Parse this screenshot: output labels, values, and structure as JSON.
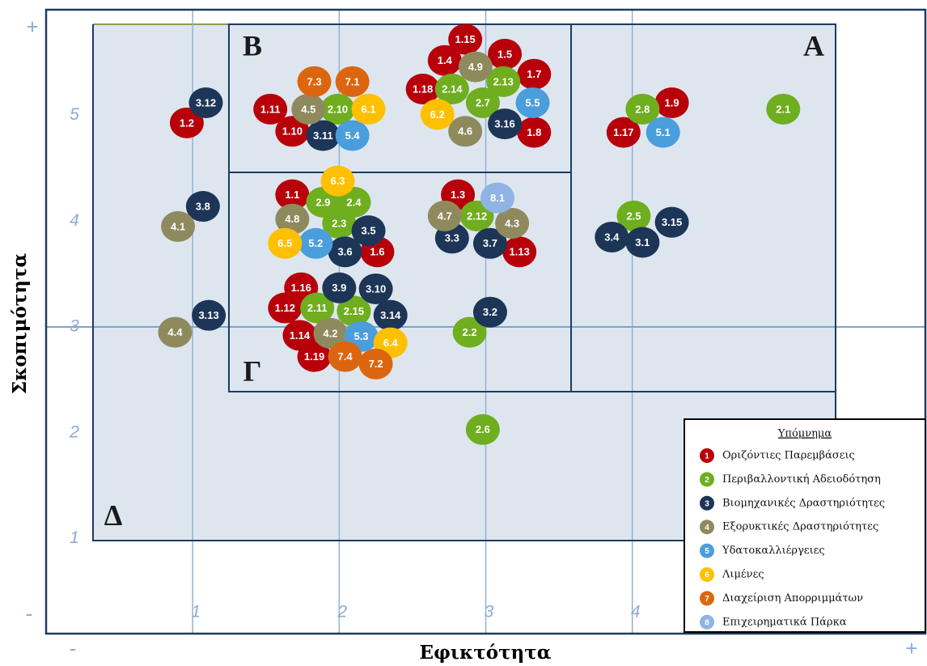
{
  "chart_data": {
    "type": "scatter",
    "x_label": "Εφικτότητα",
    "y_label": "Σκοπιμότητα",
    "axis_ends": {
      "x_minus": "-",
      "x_plus": "+",
      "y_minus": "-",
      "y_plus": "+"
    },
    "xlim": [
      0,
      6
    ],
    "ylim": [
      0.1,
      6
    ],
    "xticks": [
      1,
      2,
      3,
      4
    ],
    "yticks": [
      1,
      2,
      3,
      4,
      5
    ],
    "grid": true,
    "regions": [
      "Α",
      "Β",
      "Γ",
      "Δ"
    ],
    "legend_title": "Υπόμνημα",
    "legend": "bottom-right",
    "series": [
      {
        "id": "1",
        "name": "Οριζόντιες Παρεμβάσεις",
        "color": "#b8000b",
        "labels": [
          "1.15",
          "1.5",
          "1.4",
          "1.7",
          "1.18",
          "1.9",
          "1.11",
          "1.2",
          "1.10",
          "1.8",
          "1.17",
          "1.3",
          "1.1",
          "1.6",
          "1.13",
          "1.16",
          "1.12",
          "1.14",
          "1.19"
        ],
        "x": [
          2.86,
          3.13,
          2.72,
          3.33,
          2.57,
          4.27,
          1.53,
          0.96,
          1.68,
          3.33,
          3.94,
          2.81,
          1.68,
          2.26,
          3.23,
          1.74,
          1.63,
          1.73,
          1.83
        ],
        "values": [
          5.72,
          5.58,
          5.52,
          5.39,
          5.25,
          5.12,
          5.06,
          4.93,
          4.85,
          4.84,
          4.84,
          4.25,
          4.25,
          3.71,
          3.71,
          3.37,
          3.18,
          2.92,
          2.72
        ]
      },
      {
        "id": "2",
        "name": "Περιβαλλοντική Αδειοδότηση",
        "color": "#6fae1f",
        "labels": [
          "2.14",
          "2.13",
          "2.10",
          "2.7",
          "2.8",
          "2.1",
          "2.9",
          "2.4",
          "2.12",
          "2.3",
          "2.5",
          "2.11",
          "2.15",
          "2.2",
          "2.6"
        ],
        "x": [
          2.77,
          3.12,
          1.99,
          2.98,
          4.07,
          5.03,
          1.89,
          2.1,
          2.94,
          2.0,
          4.01,
          1.85,
          2.1,
          2.89,
          2.98
        ],
        "values": [
          5.25,
          5.32,
          5.06,
          5.12,
          5.06,
          5.06,
          4.18,
          4.18,
          4.05,
          3.98,
          4.05,
          3.18,
          3.15,
          2.95,
          2.03
        ]
      },
      {
        "id": "3",
        "name": "Βιομηχανικές Δραστηριότητες",
        "color": "#1d3557",
        "labels": [
          "3.12",
          "3.11",
          "3.16",
          "3.8",
          "3.5",
          "3.3",
          "3.7",
          "3.6",
          "3.4",
          "3.1",
          "3.15",
          "3.9",
          "3.10",
          "3.14",
          "3.13",
          "3.2"
        ],
        "x": [
          1.09,
          1.89,
          3.13,
          1.07,
          2.2,
          2.77,
          3.03,
          2.04,
          3.86,
          4.07,
          4.27,
          2.0,
          2.25,
          2.35,
          1.11,
          3.03
        ],
        "values": [
          5.12,
          4.81,
          4.92,
          4.14,
          3.91,
          3.84,
          3.79,
          3.71,
          3.85,
          3.8,
          3.99,
          3.37,
          3.36,
          3.11,
          3.11,
          3.14
        ]
      },
      {
        "id": "4",
        "name": "Εξορυκτικές Δραστηριότητες",
        "color": "#8f8a5e",
        "labels": [
          "4.9",
          "4.5",
          "4.6",
          "4.8",
          "4.7",
          "4.3",
          "4.1",
          "4.2",
          "4.4"
        ],
        "x": [
          2.93,
          1.79,
          2.86,
          1.68,
          2.72,
          3.18,
          0.9,
          1.94,
          0.88
        ],
        "values": [
          5.46,
          5.06,
          4.85,
          4.02,
          4.05,
          3.98,
          3.95,
          2.94,
          2.95
        ]
      },
      {
        "id": "5",
        "name": "Υδατοκαλλιέργειες",
        "color": "#4a9edb",
        "labels": [
          "5.5",
          "5.4",
          "5.1",
          "5.2",
          "5.3"
        ],
        "x": [
          3.32,
          2.09,
          4.21,
          1.84,
          2.15
        ],
        "values": [
          5.12,
          4.81,
          4.84,
          3.79,
          2.91
        ]
      },
      {
        "id": "6",
        "name": "Λιμένες",
        "color": "#ffc000",
        "labels": [
          "6.1",
          "6.2",
          "6.3",
          "6.5",
          "6.4"
        ],
        "x": [
          2.2,
          2.67,
          1.99,
          1.63,
          2.35
        ],
        "values": [
          5.06,
          5.01,
          4.38,
          3.79,
          2.85
        ]
      },
      {
        "id": "7",
        "name": "Διαχείριση Απορριμμάτων",
        "color": "#dc660f",
        "labels": [
          "7.3",
          "7.1",
          "7.4",
          "7.2"
        ],
        "x": [
          1.83,
          2.09,
          2.04,
          2.25
        ],
        "values": [
          5.32,
          5.32,
          2.72,
          2.65
        ]
      },
      {
        "id": "8",
        "name": "Επιχειρηματικά Πάρκα",
        "color": "#8fb3e2",
        "labels": [
          "8.1"
        ],
        "x": [
          3.08
        ],
        "values": [
          4.22
        ]
      }
    ]
  }
}
